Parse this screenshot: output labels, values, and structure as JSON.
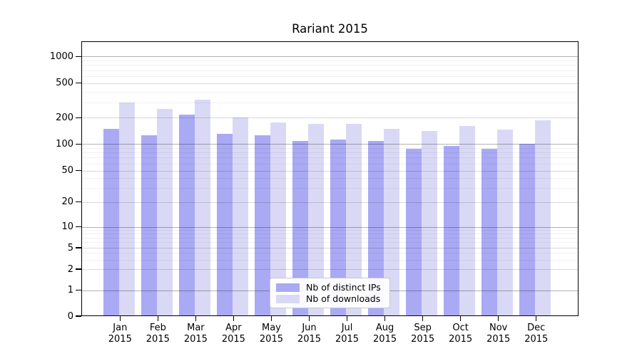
{
  "chart_data": {
    "type": "bar",
    "title": "Rariant 2015",
    "year": "2015",
    "months": [
      "Jan",
      "Feb",
      "Mar",
      "Apr",
      "May",
      "Jun",
      "Jul",
      "Aug",
      "Sep",
      "Oct",
      "Nov",
      "Dec"
    ],
    "categories": [
      "Jan 2015",
      "Feb 2015",
      "Mar 2015",
      "Apr 2015",
      "May 2015",
      "Jun 2015",
      "Jul 2015",
      "Aug 2015",
      "Sep 2015",
      "Oct 2015",
      "Nov 2015",
      "Dec 2015"
    ],
    "series": [
      {
        "name": "Nb of distinct IPs",
        "color": "#a9a9f4",
        "values": [
          150,
          125,
          215,
          130,
          125,
          108,
          113,
          108,
          89,
          95,
          89,
          100
        ]
      },
      {
        "name": "Nb of downloads",
        "color": "#d9d9f6",
        "values": [
          300,
          250,
          325,
          200,
          175,
          170,
          170,
          150,
          140,
          160,
          145,
          185
        ]
      }
    ],
    "y_axis": {
      "scale": "symlog",
      "ticks": [
        0,
        1,
        2,
        5,
        10,
        20,
        50,
        100,
        200,
        500,
        1000
      ],
      "range": [
        0,
        1000
      ]
    },
    "grid": true,
    "legend_position": "inside-bottom-center"
  }
}
